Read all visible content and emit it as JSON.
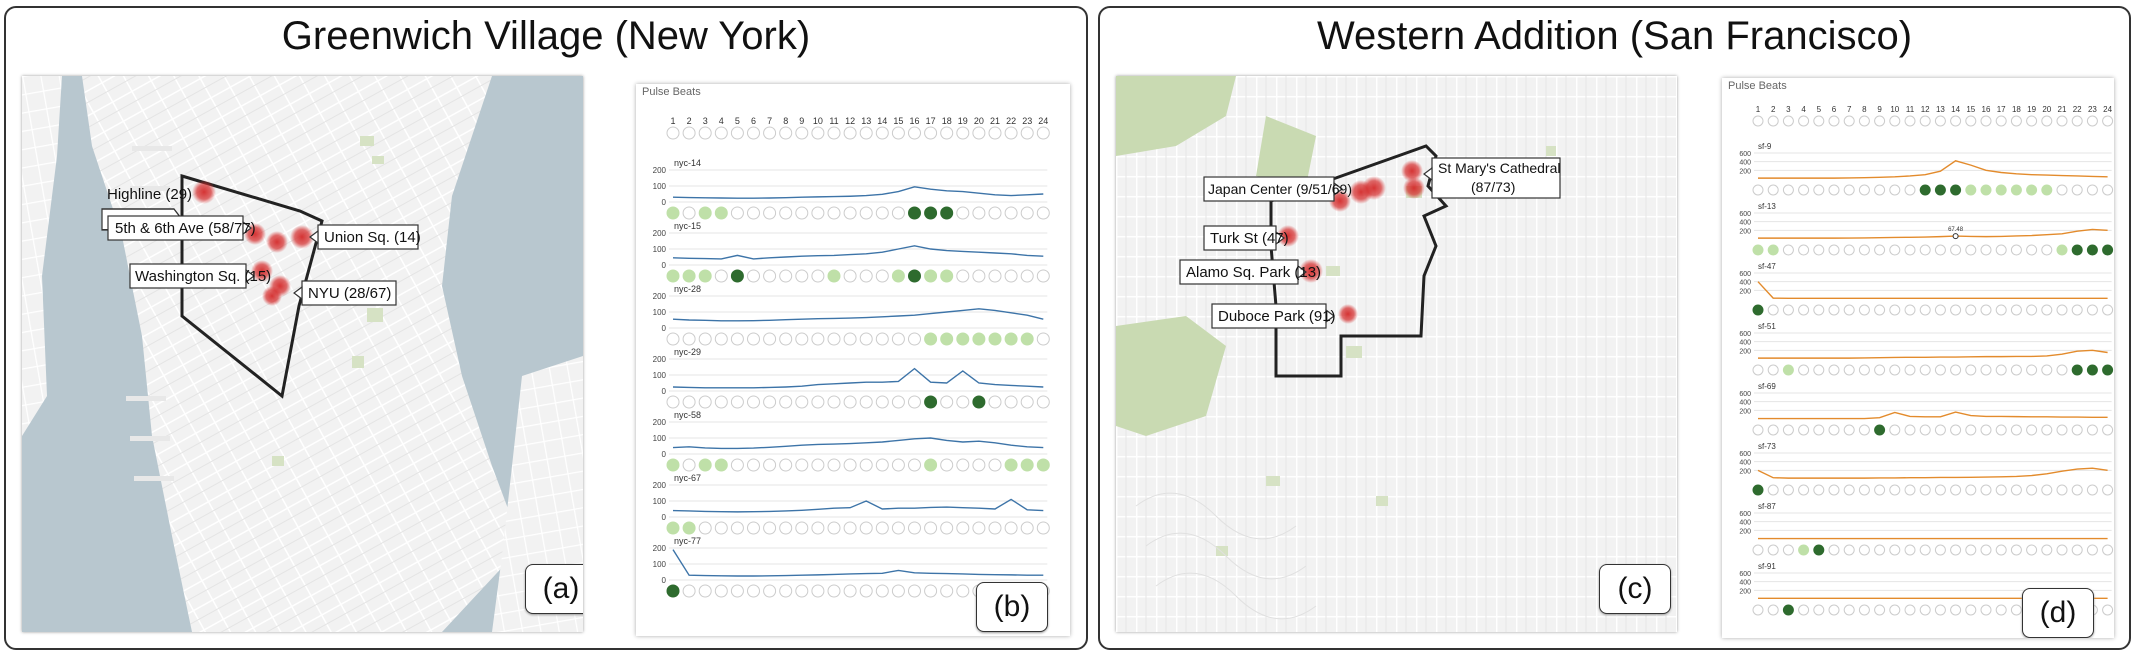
{
  "panels": {
    "left_title": "Greenwich Village (New York)",
    "right_title": "Western Addition (San Francisco)"
  },
  "tags": {
    "a": "(a)",
    "b": "(b)",
    "c": "(c)",
    "d": "(d)"
  },
  "maps": {
    "nyc": {
      "labels": [
        "Highline (29)",
        "5th & 6th Ave (58/77)",
        "Union Sq. (14)",
        "Washington Sq. (15)",
        "NYU (28/67)"
      ]
    },
    "sf": {
      "labels": [
        "Japan Center (9/51/69)",
        "St Mary's Cathedral",
        "(87/73)",
        "Turk St (47)",
        "Alamo Sq. Park (13)",
        "Duboce Park (91)"
      ]
    }
  },
  "colors": {
    "nyc_line": "#3d74a8",
    "sf_line": "#e38b2c",
    "pulse_light": "#bfe0a8",
    "pulse_dark": "#2e6b2e",
    "hotspot": "#d42a2a",
    "water": "#b8c7cf",
    "park": "#d6e2c4"
  },
  "chart_data": [
    {
      "type": "line",
      "title": "Pulse Beats",
      "x_label": "",
      "y_label": "",
      "hours": [
        1,
        2,
        3,
        4,
        5,
        6,
        7,
        8,
        9,
        10,
        11,
        12,
        13,
        14,
        15,
        16,
        17,
        18,
        19,
        20,
        21,
        22,
        23,
        24
      ],
      "ylim": [
        0,
        200
      ],
      "yticks": [
        0,
        100,
        200
      ],
      "series": [
        {
          "name": "nyc-14",
          "values": [
            30,
            28,
            26,
            25,
            24,
            24,
            25,
            27,
            30,
            32,
            34,
            36,
            40,
            48,
            65,
            95,
            80,
            70,
            65,
            55,
            45,
            40,
            45,
            50
          ],
          "light": [
            1,
            3,
            4
          ],
          "dark": [
            16,
            17,
            18
          ]
        },
        {
          "name": "nyc-15",
          "values": [
            45,
            42,
            40,
            38,
            60,
            38,
            45,
            50,
            55,
            58,
            60,
            65,
            70,
            80,
            100,
            120,
            100,
            90,
            85,
            80,
            75,
            70,
            60,
            55
          ],
          "light": [
            1,
            2,
            3,
            11,
            15,
            17,
            18
          ],
          "dark": [
            5,
            16
          ]
        },
        {
          "name": "nyc-28",
          "values": [
            55,
            50,
            48,
            45,
            45,
            46,
            48,
            52,
            55,
            58,
            60,
            62,
            65,
            70,
            75,
            80,
            90,
            100,
            110,
            120,
            110,
            95,
            80,
            55
          ],
          "light": [
            17,
            18,
            19,
            20,
            21,
            22,
            23
          ],
          "dark": []
        },
        {
          "name": "nyc-29",
          "values": [
            25,
            22,
            20,
            20,
            20,
            20,
            22,
            25,
            30,
            40,
            45,
            50,
            55,
            55,
            60,
            140,
            55,
            50,
            125,
            50,
            40,
            35,
            30,
            25
          ],
          "light": [],
          "dark": [
            17,
            20
          ]
        },
        {
          "name": "nyc-58",
          "values": [
            40,
            45,
            38,
            35,
            35,
            37,
            42,
            48,
            55,
            60,
            62,
            65,
            70,
            75,
            85,
            95,
            100,
            85,
            75,
            80,
            70,
            55,
            45,
            40
          ],
          "light": [
            1,
            3,
            4,
            17,
            22,
            23,
            24
          ],
          "dark": []
        },
        {
          "name": "nyc-67",
          "values": [
            40,
            38,
            35,
            33,
            32,
            33,
            35,
            38,
            42,
            48,
            55,
            58,
            100,
            50,
            55,
            55,
            60,
            62,
            58,
            55,
            50,
            110,
            45,
            40
          ],
          "light": [
            1,
            2
          ],
          "dark": []
        },
        {
          "name": "nyc-77",
          "values": [
            190,
            30,
            28,
            26,
            25,
            25,
            26,
            28,
            30,
            32,
            35,
            38,
            40,
            42,
            60,
            45,
            42,
            40,
            38,
            35,
            33,
            32,
            30,
            30
          ],
          "light": [],
          "dark": [
            1
          ]
        }
      ]
    },
    {
      "type": "line",
      "title": "Pulse Beats",
      "x_label": "",
      "y_label": "",
      "hours": [
        1,
        2,
        3,
        4,
        5,
        6,
        7,
        8,
        9,
        10,
        11,
        12,
        13,
        14,
        15,
        16,
        17,
        18,
        19,
        20,
        21,
        22,
        23,
        24
      ],
      "ylim": [
        0,
        600
      ],
      "yticks": [
        200,
        400,
        600
      ],
      "annotation": {
        "series": "sf-13",
        "hour": 14,
        "text": "67.48"
      },
      "series": [
        {
          "name": "sf-9",
          "values": [
            20,
            20,
            20,
            20,
            20,
            20,
            25,
            30,
            40,
            50,
            70,
            100,
            180,
            420,
            320,
            200,
            150,
            120,
            100,
            90,
            80,
            70,
            60,
            50
          ],
          "light": [
            15,
            16,
            17,
            18,
            19,
            20
          ],
          "dark": [
            12,
            13,
            14
          ]
        },
        {
          "name": "sf-13",
          "values": [
            20,
            20,
            20,
            20,
            20,
            20,
            22,
            25,
            30,
            35,
            40,
            45,
            55,
            67.48,
            60,
            55,
            60,
            70,
            80,
            100,
            120,
            180,
            220,
            200
          ],
          "light": [
            1,
            2,
            21
          ],
          "dark": [
            22,
            23,
            24
          ]
        },
        {
          "name": "sf-47",
          "values": [
            400,
            20,
            15,
            15,
            15,
            15,
            15,
            15,
            15,
            15,
            15,
            15,
            15,
            15,
            15,
            15,
            15,
            15,
            15,
            15,
            15,
            15,
            15,
            15
          ],
          "light": [],
          "dark": [
            1
          ]
        },
        {
          "name": "sf-51",
          "values": [
            20,
            20,
            20,
            20,
            20,
            20,
            20,
            25,
            30,
            35,
            40,
            40,
            45,
            45,
            50,
            55,
            55,
            60,
            60,
            70,
            110,
            180,
            200,
            150
          ],
          "light": [
            3
          ],
          "dark": [
            22,
            23,
            24
          ]
        },
        {
          "name": "sf-69",
          "values": [
            10,
            10,
            10,
            10,
            10,
            10,
            10,
            10,
            30,
            150,
            60,
            50,
            50,
            160,
            80,
            60,
            60,
            55,
            50,
            50,
            45,
            45,
            40,
            40
          ],
          "light": [],
          "dark": [
            9
          ]
        },
        {
          "name": "sf-73",
          "values": [
            200,
            30,
            20,
            20,
            20,
            20,
            20,
            20,
            25,
            25,
            30,
            30,
            35,
            35,
            40,
            45,
            50,
            60,
            80,
            120,
            180,
            230,
            250,
            200
          ],
          "light": [],
          "dark": [
            1
          ]
        },
        {
          "name": "sf-87",
          "values": [
            10,
            10,
            10,
            10,
            10,
            10,
            10,
            10,
            10,
            10,
            10,
            10,
            10,
            10,
            10,
            10,
            10,
            10,
            10,
            10,
            10,
            10,
            10,
            10
          ],
          "light": [
            4
          ],
          "dark": [
            5
          ]
        },
        {
          "name": "sf-91",
          "values": [
            15,
            15,
            15,
            15,
            15,
            15,
            15,
            15,
            15,
            15,
            15,
            15,
            15,
            15,
            15,
            15,
            15,
            15,
            15,
            15,
            15,
            15,
            15,
            15
          ],
          "light": [],
          "dark": [
            3
          ]
        }
      ]
    }
  ]
}
